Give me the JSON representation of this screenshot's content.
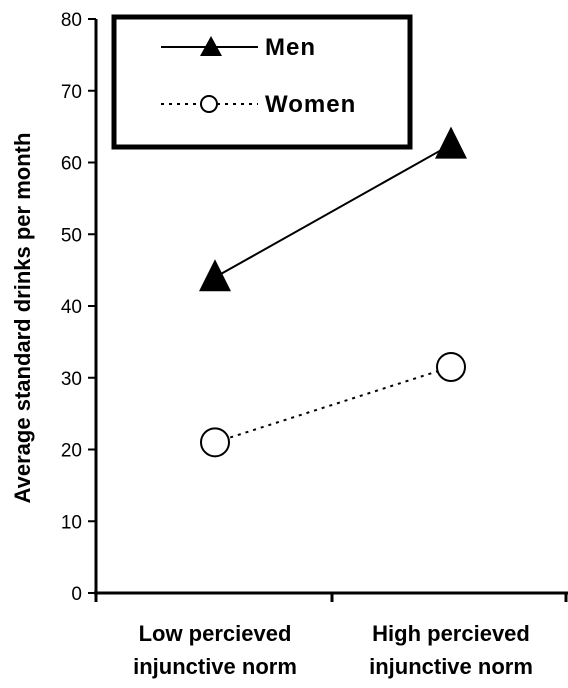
{
  "chart_data": {
    "type": "line",
    "categories": [
      "Low percieved injunctive norm",
      "High percieved injunctive norm"
    ],
    "category_lines": [
      [
        "Low percieved",
        "injunctive norm"
      ],
      [
        "High percieved",
        "injunctive norm"
      ]
    ],
    "ylabel": "Average standard drinks per month",
    "xlabel": "",
    "title": "",
    "ylim": [
      0,
      80
    ],
    "yticks": [
      "0",
      "10",
      "20",
      "30",
      "40",
      "50",
      "60",
      "70",
      "80"
    ],
    "grid": false,
    "legend_position": "top-left",
    "series": [
      {
        "name": "Men",
        "values": [
          44,
          62.5
        ],
        "marker": "triangle-filled",
        "line": "solid",
        "color": "#000000"
      },
      {
        "name": "Women",
        "values": [
          21,
          31.5
        ],
        "marker": "circle-open",
        "line": "dotted",
        "color": "#000000"
      }
    ]
  }
}
